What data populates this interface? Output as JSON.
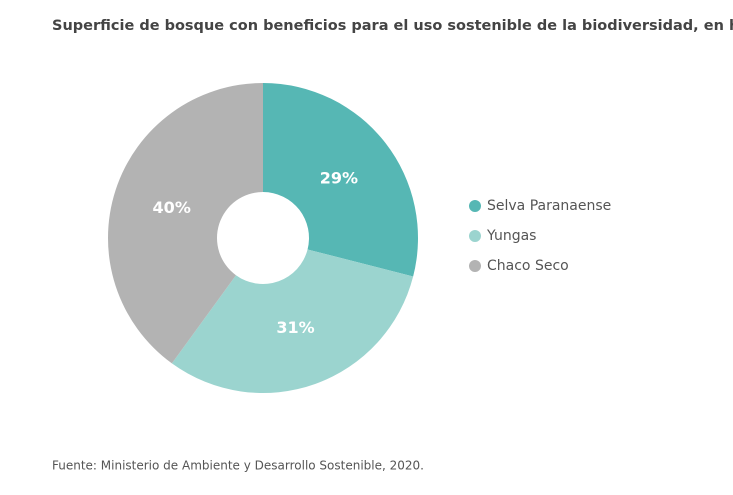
{
  "chart_data": {
    "type": "pie",
    "title": "Superficie de bosque con beneficios para el uso sostenible de la biodiversidad, en hectáreas.",
    "categories": [
      "Selva Paranaense",
      "Yungas",
      "Chaco Seco"
    ],
    "values": [
      29,
      31,
      40
    ],
    "value_labels": [
      "29%",
      "31%",
      "40%"
    ],
    "colors": [
      "#56b7b4",
      "#9bd4cf",
      "#b3b3b3"
    ],
    "source": "Fuente: Ministerio de Ambiente y Desarrollo Sostenible, 2020."
  }
}
